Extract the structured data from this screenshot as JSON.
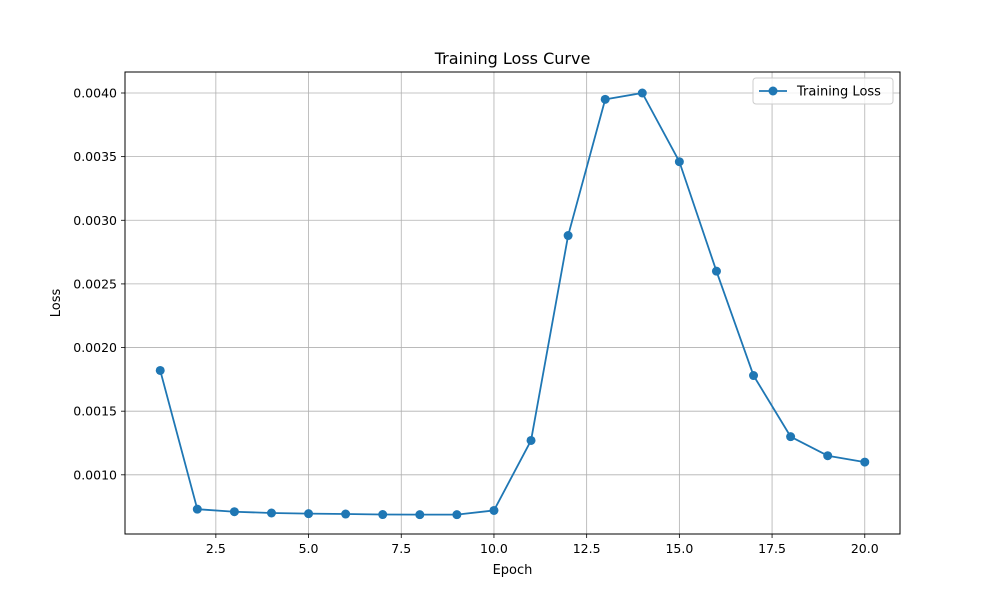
{
  "chart_data": {
    "type": "line",
    "title": "Training Loss Curve",
    "xlabel": "Epoch",
    "ylabel": "Loss",
    "xlim": [
      0.05,
      20.95
    ],
    "ylim": [
      0.000535,
      0.004165
    ],
    "xticks": [
      2.5,
      5.0,
      7.5,
      10.0,
      12.5,
      15.0,
      17.5,
      20.0
    ],
    "xtick_labels": [
      "2.5",
      "5.0",
      "7.5",
      "10.0",
      "12.5",
      "15.0",
      "17.5",
      "20.0"
    ],
    "yticks": [
      0.001,
      0.0015,
      0.002,
      0.0025,
      0.003,
      0.0035,
      0.004
    ],
    "ytick_labels": [
      "0.0010",
      "0.0015",
      "0.0020",
      "0.0025",
      "0.0030",
      "0.0035",
      "0.0040"
    ],
    "grid": true,
    "legend_position": "top-right",
    "x": [
      1,
      2,
      3,
      4,
      5,
      6,
      7,
      8,
      9,
      10,
      11,
      12,
      13,
      14,
      15,
      16,
      17,
      18,
      19,
      20
    ],
    "series": [
      {
        "name": "Training Loss",
        "color": "#1f77b4",
        "marker": "circle",
        "values": [
          0.00182,
          0.00073,
          0.00071,
          0.0007,
          0.000695,
          0.000692,
          0.000688,
          0.000687,
          0.000687,
          0.00072,
          0.00127,
          0.00288,
          0.00395,
          0.004,
          0.00346,
          0.0026,
          0.00178,
          0.0013,
          0.00115,
          0.0011
        ]
      }
    ]
  }
}
